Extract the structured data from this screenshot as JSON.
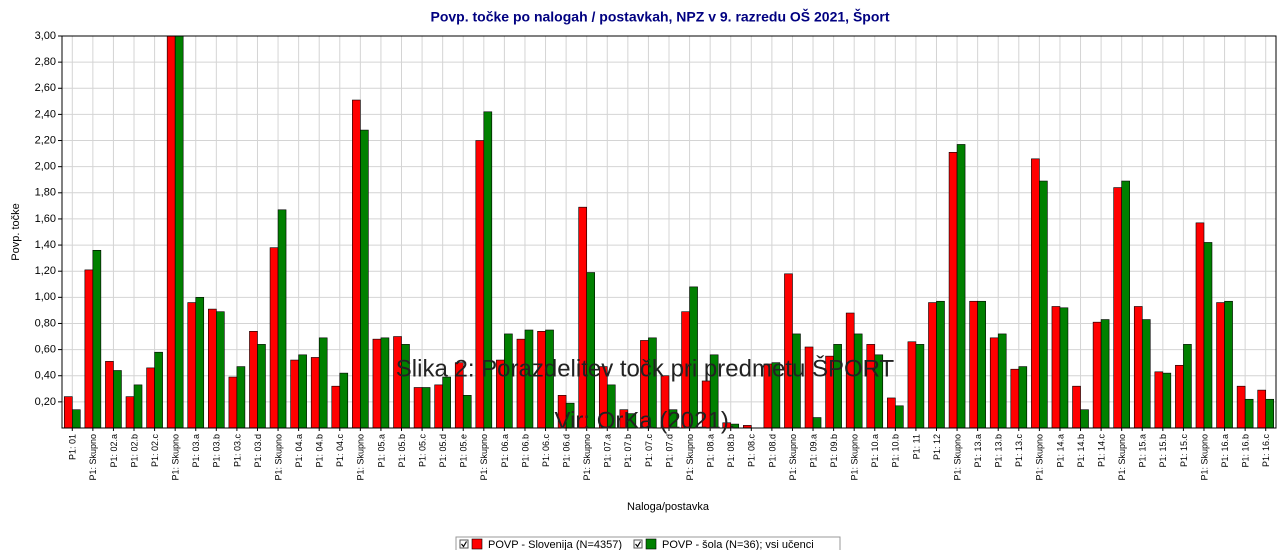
{
  "chart_data": {
    "type": "bar",
    "title": "Povp. točke po nalogah / postavkah, NPZ v 9. razredu OŠ 2021, Šport",
    "ylabel": "Povp. točke",
    "xlabel": "Naloga/postavka",
    "annotations": [
      "Slika 2: Porazdelitev točk pri predmetu ŠPORT",
      "Vir: OrKa (2021)."
    ],
    "categories": [
      "P1: 01",
      "P1: Skupno",
      "P1: 02.a",
      "P1: 02.b",
      "P1: 02.c",
      "P1: Skupno",
      "P1: 03.a",
      "P1: 03.b",
      "P1: 03.c",
      "P1: 03.d",
      "P1: Skupno",
      "P1: 04.a",
      "P1: 04.b",
      "P1: 04.c",
      "P1: Skupno",
      "P1: 05.a",
      "P1: 05.b",
      "P1: 05.c",
      "P1: 05.d",
      "P1: 05.e",
      "P1: Skupno",
      "P1: 06.a",
      "P1: 06.b",
      "P1: 06.c",
      "P1: 06.d",
      "P1: Skupno",
      "P1: 07.a",
      "P1: 07.b",
      "P1: 07.c",
      "P1: 07.d",
      "P1: Skupno",
      "P1: 08.a",
      "P1: 08.b",
      "P1: 08.c",
      "P1: 08.d",
      "P1: Skupno",
      "P1: 09.a",
      "P1: 09.b",
      "P1: Skupno",
      "P1: 10.a",
      "P1: 10.b",
      "P1: 11",
      "P1: 12",
      "P1: Skupno",
      "P1: 13.a",
      "P1: 13.b",
      "P1: 13.c",
      "P1: Skupno",
      "P1: 14.a",
      "P1: 14.b",
      "P1: 14.c",
      "P1: Skupno",
      "P1: 15.a",
      "P1: 15.b",
      "P1: 15.c",
      "P1: Skupno",
      "P1: 16.a",
      "P1: 16.b",
      "P1: 16.c"
    ],
    "series": [
      {
        "name": "POVP - Slovenija (N=4357)",
        "color": "#ff0000",
        "values": [
          0.24,
          1.21,
          0.51,
          0.24,
          0.46,
          3.0,
          0.96,
          0.91,
          0.39,
          0.74,
          1.38,
          0.52,
          0.54,
          0.32,
          2.51,
          0.68,
          0.7,
          0.31,
          0.33,
          0.5,
          2.2,
          0.52,
          0.68,
          0.74,
          0.25,
          1.69,
          0.47,
          0.14,
          0.67,
          0.4,
          0.89,
          0.36,
          0.04,
          0.02,
          0.49,
          1.18,
          0.62,
          0.55,
          0.88,
          0.64,
          0.23,
          0.66,
          0.96,
          2.11,
          0.97,
          0.69,
          0.45,
          2.06,
          0.93,
          0.32,
          0.81,
          1.84,
          0.93,
          0.43,
          0.48,
          1.57,
          0.96,
          0.32,
          0.29
        ]
      },
      {
        "name": "POVP - šola (N=36); vsi učenci",
        "color": "#008000",
        "values": [
          0.14,
          1.36,
          0.44,
          0.33,
          0.58,
          3.0,
          1.0,
          0.89,
          0.47,
          0.64,
          1.67,
          0.56,
          0.69,
          0.42,
          2.28,
          0.69,
          0.64,
          0.31,
          0.39,
          0.25,
          2.42,
          0.72,
          0.75,
          0.75,
          0.19,
          1.19,
          0.33,
          0.11,
          0.69,
          0.14,
          1.08,
          0.56,
          0.03,
          0.0,
          0.5,
          0.72,
          0.08,
          0.64,
          0.72,
          0.56,
          0.17,
          0.64,
          0.97,
          2.17,
          0.97,
          0.72,
          0.47,
          1.89,
          0.92,
          0.14,
          0.83,
          1.89,
          0.83,
          0.42,
          0.64,
          1.42,
          0.97,
          0.22,
          0.22
        ]
      }
    ],
    "ylim": [
      0,
      3
    ],
    "yticks": [
      {
        "value": 0.2,
        "label": "0,20"
      },
      {
        "value": 0.4,
        "label": "0,40"
      },
      {
        "value": 0.6,
        "label": "0,60"
      },
      {
        "value": 0.8,
        "label": "0,80"
      },
      {
        "value": 1.0,
        "label": "1,00"
      },
      {
        "value": 1.2,
        "label": "1,20"
      },
      {
        "value": 1.4,
        "label": "1,40"
      },
      {
        "value": 1.6,
        "label": "1,60"
      },
      {
        "value": 1.8,
        "label": "1,80"
      },
      {
        "value": 2.0,
        "label": "2,00"
      },
      {
        "value": 2.2,
        "label": "2,20"
      },
      {
        "value": 2.4,
        "label": "2,40"
      },
      {
        "value": 2.6,
        "label": "2,60"
      },
      {
        "value": 2.8,
        "label": "2,80"
      },
      {
        "value": 3.0,
        "label": "3,00"
      }
    ],
    "grid": true
  }
}
